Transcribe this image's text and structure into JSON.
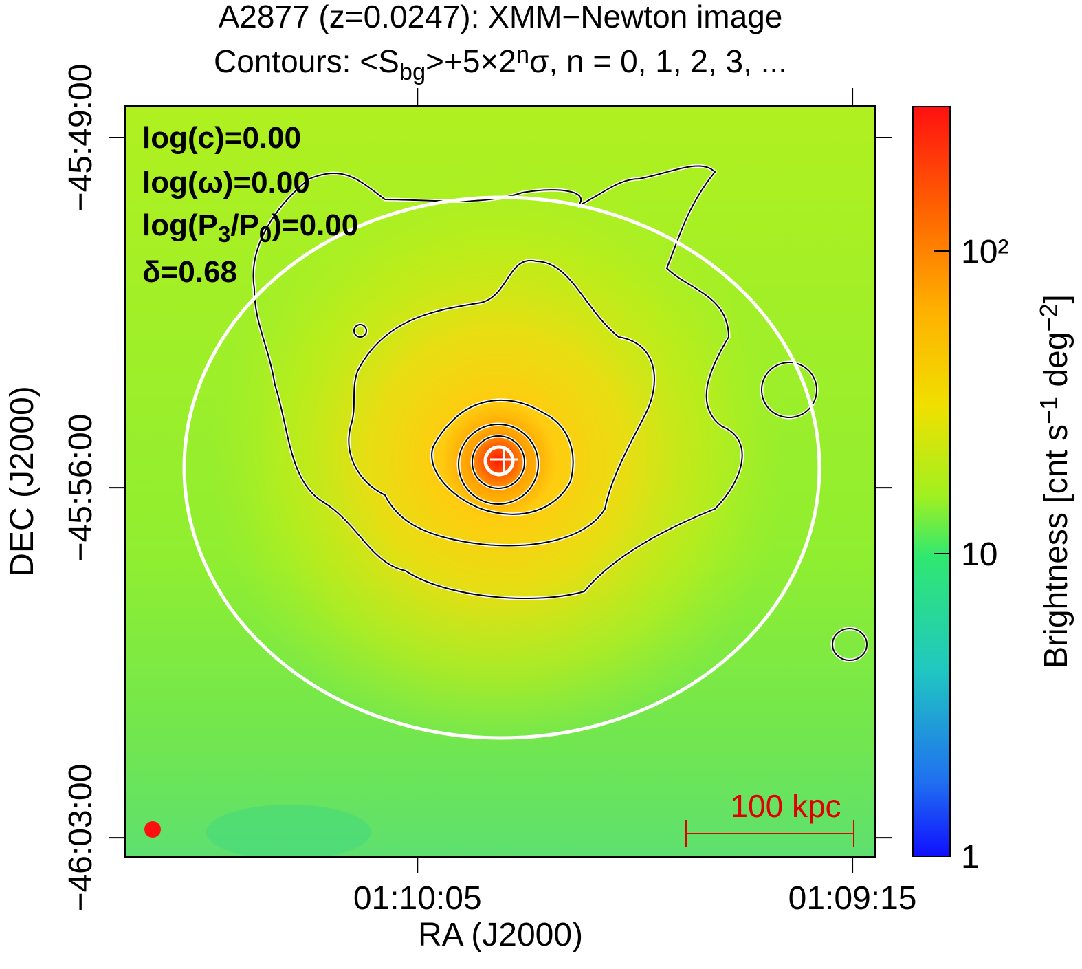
{
  "chart_data": {
    "type": "image",
    "title": "A2877 (z=0.0247): XMM−Newton image",
    "subtitle_parts": [
      "Contours: <S",
      "bg",
      ">+5×2",
      "n",
      "σ, n = 0, 1, 2, 3, ..."
    ],
    "x_label": "RA (J2000)",
    "y_label": "DEC (J2000)",
    "xlim": [
      4238.6,
      4152.4
    ],
    "xticks": [
      {
        "value": 4205,
        "label": "01:10:05"
      },
      {
        "value": 4155,
        "label": "01:09:15"
      }
    ],
    "ylim": [
      -165803,
      -164902
    ],
    "yticks": [
      {
        "value": -164940,
        "label": "−45:49:00"
      },
      {
        "value": -165360,
        "label": "−45:56:00"
      },
      {
        "value": -165780,
        "label": "−46:03:00"
      }
    ],
    "colorbar": {
      "label_parts": [
        "Brightness [cnt s",
        "−1",
        " deg",
        "−2",
        "]"
      ],
      "log_scale": true,
      "lim": [
        1,
        300
      ],
      "ticks": [
        1,
        10,
        {
          "value": 100,
          "label": "10²"
        }
      ]
    },
    "annotations": [
      {
        "parts": [
          "log(c)=0.00"
        ]
      },
      {
        "parts": [
          "log(ω)=0.00"
        ]
      },
      {
        "parts": [
          "log(P",
          "3",
          "/P",
          "0",
          ")=0.00"
        ]
      },
      {
        "parts": [
          "δ=0.68"
        ]
      }
    ],
    "scale_bar_label": "100 kpc"
  }
}
